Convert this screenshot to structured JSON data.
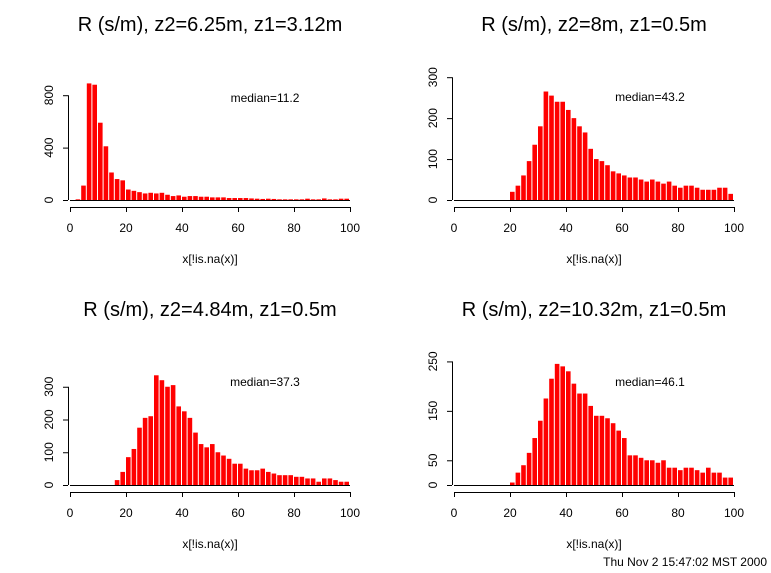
{
  "footer": "Thu Nov  2 15:47:02 MST 2000",
  "chart_data": [
    {
      "type": "bar",
      "title": "R (s/m), z2=6.25m, z1=3.12m",
      "xlabel": "x[!is.na(x)]",
      "ylabel": "",
      "annotation": "median=11.2",
      "xlim": [
        0,
        100
      ],
      "ylim": [
        0,
        1000
      ],
      "xticks": [
        0,
        20,
        40,
        60,
        80,
        100
      ],
      "yticks": [
        0,
        400,
        800
      ],
      "bin_width": 2,
      "bin_start": 0,
      "values": [
        0,
        5,
        110,
        890,
        880,
        590,
        410,
        210,
        160,
        150,
        80,
        70,
        60,
        50,
        55,
        50,
        55,
        40,
        30,
        35,
        25,
        30,
        30,
        25,
        25,
        20,
        20,
        20,
        15,
        15,
        15,
        15,
        12,
        10,
        8,
        10,
        8,
        5,
        5,
        5,
        5,
        5,
        10,
        5,
        5,
        12,
        5,
        5,
        10,
        10
      ],
      "color": "#ff0000"
    },
    {
      "type": "bar",
      "title": "R (s/m), z2=8m, z1=0.5m",
      "xlabel": "x[!is.na(x)]",
      "ylabel": "",
      "annotation": "median=43.2",
      "xlim": [
        0,
        100
      ],
      "ylim": [
        0,
        320
      ],
      "xticks": [
        0,
        20,
        40,
        60,
        80,
        100
      ],
      "yticks": [
        0,
        100,
        200,
        300
      ],
      "bin_width": 2,
      "bin_start": 0,
      "values": [
        0,
        0,
        0,
        0,
        0,
        0,
        0,
        0,
        0,
        0,
        20,
        35,
        60,
        95,
        135,
        180,
        265,
        255,
        240,
        240,
        220,
        200,
        180,
        165,
        125,
        100,
        95,
        85,
        70,
        65,
        60,
        55,
        55,
        50,
        45,
        50,
        45,
        40,
        45,
        35,
        30,
        35,
        35,
        30,
        25,
        25,
        25,
        30,
        30,
        15
      ],
      "color": "#ff0000"
    },
    {
      "type": "bar",
      "title": "R (s/m), z2=4.84m, z1=0.5m",
      "xlabel": "x[!is.na(x)]",
      "ylabel": "",
      "annotation": "median=37.3",
      "xlim": [
        0,
        100
      ],
      "ylim": [
        0,
        400
      ],
      "xticks": [
        0,
        20,
        40,
        60,
        80,
        100
      ],
      "yticks": [
        0,
        100,
        200,
        300
      ],
      "bin_width": 2,
      "bin_start": 0,
      "values": [
        0,
        0,
        0,
        0,
        0,
        0,
        0,
        0,
        15,
        40,
        85,
        110,
        175,
        205,
        210,
        335,
        320,
        300,
        305,
        240,
        225,
        205,
        160,
        125,
        115,
        125,
        100,
        90,
        80,
        65,
        65,
        50,
        45,
        45,
        50,
        40,
        35,
        30,
        30,
        30,
        25,
        25,
        20,
        20,
        10,
        20,
        20,
        15,
        10,
        10
      ],
      "color": "#ff0000"
    },
    {
      "type": "bar",
      "title": "R (s/m), z2=10.32m, z1=0.5m",
      "xlabel": "x[!is.na(x)]",
      "ylabel": "",
      "annotation": "median=46.1",
      "xlim": [
        0,
        100
      ],
      "ylim": [
        0,
        265
      ],
      "xticks": [
        0,
        20,
        40,
        60,
        80,
        100
      ],
      "yticks": [
        0,
        50,
        150,
        250
      ],
      "bin_width": 2,
      "bin_start": 0,
      "values": [
        0,
        0,
        0,
        0,
        0,
        0,
        0,
        0,
        0,
        0,
        5,
        25,
        40,
        65,
        95,
        130,
        175,
        215,
        245,
        240,
        230,
        205,
        185,
        185,
        160,
        140,
        140,
        135,
        125,
        110,
        95,
        60,
        60,
        55,
        50,
        50,
        45,
        50,
        35,
        35,
        30,
        35,
        35,
        30,
        25,
        35,
        25,
        25,
        15,
        15
      ],
      "color": "#ff0000"
    }
  ]
}
